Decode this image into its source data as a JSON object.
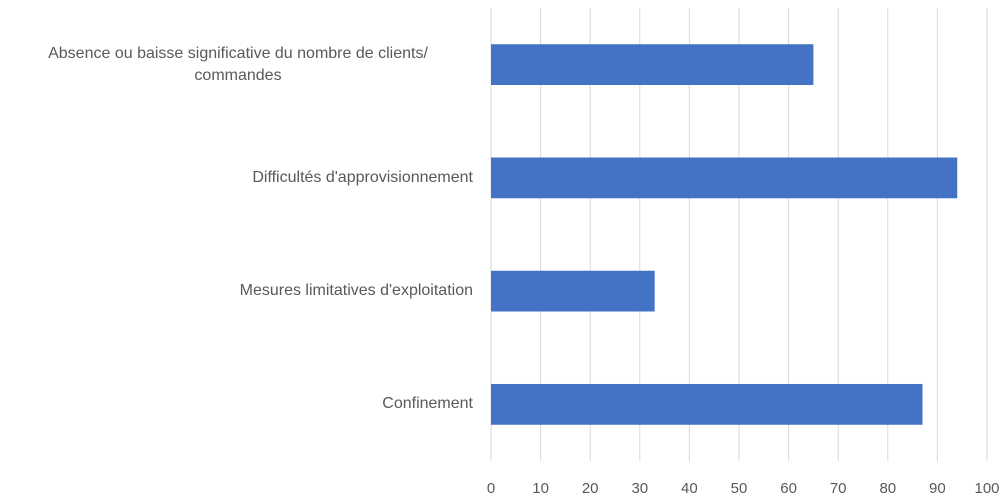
{
  "chart_data": {
    "type": "barh",
    "categories": [
      "Absence ou baisse significative du nombre de clients/ commandes",
      "Difficultés d'approvisionnement",
      "Mesures limitatives d'exploitation",
      "Confinement"
    ],
    "values": [
      65,
      94,
      33,
      87
    ],
    "color": "#4472c4",
    "xlim": [
      0,
      100
    ],
    "xticks": [
      0,
      10,
      20,
      30,
      40,
      50,
      60,
      70,
      80,
      90,
      100
    ],
    "grid": true
  }
}
